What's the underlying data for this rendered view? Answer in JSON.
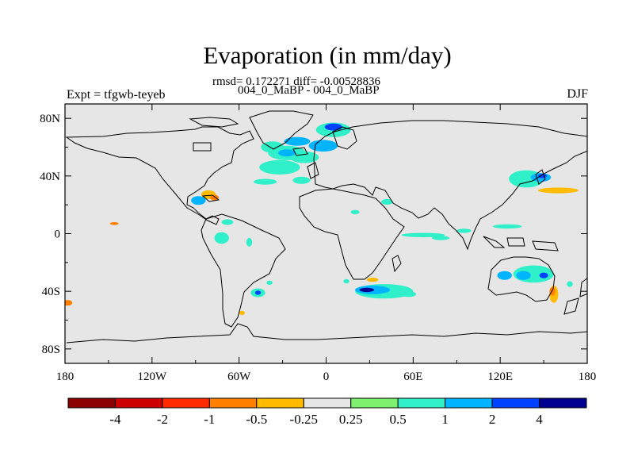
{
  "title": "Evaporation (in mm/day)",
  "stats_line": "rmsd= 0.172271 diff= -0.00528836",
  "experiment_names": "004_0_MaBP - 004_0_MaBP",
  "experiment_label": "Expt = tfgwb-teyeb",
  "season": "DJF",
  "chart_data": {
    "type": "heatmap",
    "title": "Evaporation (in mm/day)",
    "subtitle": "rmsd= 0.172271 diff= -0.00528836",
    "projection": "cylindrical equidistant",
    "xlim": [
      -180,
      180
    ],
    "ylim": [
      -90,
      90
    ],
    "x_ticks": [
      {
        "value": -180,
        "label": "180"
      },
      {
        "value": -120,
        "label": "120W"
      },
      {
        "value": -60,
        "label": "60W"
      },
      {
        "value": 0,
        "label": "0"
      },
      {
        "value": 60,
        "label": "60E"
      },
      {
        "value": 120,
        "label": "120E"
      },
      {
        "value": 180,
        "label": "180"
      }
    ],
    "y_ticks": [
      {
        "value": 80,
        "label": "80N"
      },
      {
        "value": 40,
        "label": "40N"
      },
      {
        "value": 0,
        "label": "0"
      },
      {
        "value": -40,
        "label": "40S"
      },
      {
        "value": -80,
        "label": "80S"
      }
    ],
    "background_color": "#e6e6e6",
    "colorbar": {
      "labels": [
        "-4",
        "-2",
        "-1",
        "-0.5",
        "-0.25",
        "0.25",
        "0.5",
        "1",
        "2",
        "4"
      ],
      "colors": [
        "#8b0000",
        "#cc0000",
        "#ff2a00",
        "#ff8000",
        "#ffbb00",
        "#e6e6e6",
        "#7df06e",
        "#2ff0c8",
        "#00b4ff",
        "#0040ff",
        "#000090"
      ]
    },
    "anomaly_regions": [
      {
        "lon": -32,
        "lat": 46,
        "rx": 14,
        "ry": 5,
        "level": 0.5
      },
      {
        "lon": -15,
        "lat": 53,
        "rx": 10,
        "ry": 4,
        "level": 0.5
      },
      {
        "lon": -37,
        "lat": 60,
        "rx": 8,
        "ry": 4,
        "level": 0.5
      },
      {
        "lon": -27,
        "lat": 56,
        "rx": 13,
        "ry": 5,
        "level": 0.5
      },
      {
        "lon": -27,
        "lat": 56,
        "rx": 6,
        "ry": 2.5,
        "level": 1
      },
      {
        "lon": -20,
        "lat": 64,
        "rx": 9,
        "ry": 3,
        "level": 1
      },
      {
        "lon": 5,
        "lat": 72,
        "rx": 12,
        "ry": 5,
        "level": 0.5
      },
      {
        "lon": 5,
        "lat": 74,
        "rx": 6,
        "ry": 2.5,
        "level": 2
      },
      {
        "lon": -2,
        "lat": 61,
        "rx": 10,
        "ry": 4,
        "level": 1
      },
      {
        "lon": -17,
        "lat": 37,
        "rx": 6,
        "ry": 2.5,
        "level": 0.5
      },
      {
        "lon": -42,
        "lat": 36,
        "rx": 8,
        "ry": 2,
        "level": 0.5
      },
      {
        "lon": -72,
        "lat": 29,
        "rx": 7,
        "ry": 4,
        "level": -0.25
      },
      {
        "lon": -81,
        "lat": 27,
        "rx": 5,
        "ry": 3,
        "level": -0.5
      },
      {
        "lon": -77,
        "lat": 25,
        "rx": 3,
        "ry": 2,
        "level": -1
      },
      {
        "lon": -88,
        "lat": 23,
        "rx": 5,
        "ry": 3,
        "level": 1
      },
      {
        "lon": -92,
        "lat": 15,
        "rx": 5,
        "ry": 3,
        "level": -0.25
      },
      {
        "lon": -172,
        "lat": 5,
        "rx": 8,
        "ry": 1.5,
        "level": -0.25
      },
      {
        "lon": -147,
        "lat": 7,
        "rx": 10,
        "ry": 1.5,
        "level": -0.25
      },
      {
        "lon": -146,
        "lat": 7,
        "rx": 3,
        "ry": 1,
        "level": -1
      },
      {
        "lon": -68,
        "lat": 8,
        "rx": 4,
        "ry": 2,
        "level": 0.5
      },
      {
        "lon": -72,
        "lat": -3,
        "rx": 5,
        "ry": 4,
        "level": 0.5
      },
      {
        "lon": -53,
        "lat": -6,
        "rx": 2,
        "ry": 3,
        "level": 0.5
      },
      {
        "lon": -166,
        "lat": -29,
        "rx": 16,
        "ry": 4,
        "level": -0.25
      },
      {
        "lon": -176,
        "lat": -50,
        "rx": 6,
        "ry": 5,
        "level": -0.25
      },
      {
        "lon": -178,
        "lat": -48,
        "rx": 3,
        "ry": 2,
        "level": -1
      },
      {
        "lon": -47,
        "lat": -41,
        "rx": 5,
        "ry": 3,
        "level": 0.5
      },
      {
        "lon": -47,
        "lat": -41,
        "rx": 2,
        "ry": 1.5,
        "level": 2
      },
      {
        "lon": -39,
        "lat": -34,
        "rx": 2,
        "ry": 1.5,
        "level": 0.5
      },
      {
        "lon": -58,
        "lat": -55,
        "rx": 2,
        "ry": 1.5,
        "level": -0.5
      },
      {
        "lon": 40,
        "lat": -40,
        "rx": 20,
        "ry": 5,
        "level": 0.5
      },
      {
        "lon": 32,
        "lat": -39,
        "rx": 12,
        "ry": 3,
        "level": 1
      },
      {
        "lon": 28,
        "lat": -39,
        "rx": 5,
        "ry": 1.5,
        "level": 4
      },
      {
        "lon": 57,
        "lat": -42,
        "rx": 5,
        "ry": 2,
        "level": 0.5
      },
      {
        "lon": 14,
        "lat": -33,
        "rx": 2,
        "ry": 1.5,
        "level": 0.5
      },
      {
        "lon": 32,
        "lat": -32,
        "rx": 4,
        "ry": 1.5,
        "level": -0.5
      },
      {
        "lon": 48,
        "lat": -31,
        "rx": 4,
        "ry": 1.5,
        "level": -0.25
      },
      {
        "lon": 42,
        "lat": 22,
        "rx": 4,
        "ry": 2,
        "level": 0.5
      },
      {
        "lon": 20,
        "lat": 15,
        "rx": 3,
        "ry": 1.5,
        "level": 0.5
      },
      {
        "lon": 67,
        "lat": -1,
        "rx": 15,
        "ry": 1.5,
        "level": 0.5
      },
      {
        "lon": 79,
        "lat": -3,
        "rx": 6,
        "ry": 1.5,
        "level": 0.5
      },
      {
        "lon": 95,
        "lat": 2,
        "rx": 5,
        "ry": 1.5,
        "level": 0.5
      },
      {
        "lon": 125,
        "lat": 5,
        "rx": 10,
        "ry": 1.5,
        "level": 0.5
      },
      {
        "lon": 138,
        "lat": 38,
        "rx": 12,
        "ry": 6,
        "level": 0.5
      },
      {
        "lon": 148,
        "lat": 39,
        "rx": 7,
        "ry": 3,
        "level": 1
      },
      {
        "lon": 149,
        "lat": 40,
        "rx": 3,
        "ry": 1.5,
        "level": 2
      },
      {
        "lon": 150,
        "lat": 30,
        "rx": 30,
        "ry": 3,
        "level": -0.25
      },
      {
        "lon": 160,
        "lat": 30,
        "rx": 14,
        "ry": 2,
        "level": -0.5
      },
      {
        "lon": 128,
        "lat": 22,
        "rx": 10,
        "ry": 4,
        "level": -0.25
      },
      {
        "lon": 143,
        "lat": -28,
        "rx": 14,
        "ry": 6,
        "level": 0.5
      },
      {
        "lon": 136,
        "lat": -29,
        "rx": 5,
        "ry": 3,
        "level": 1
      },
      {
        "lon": 123,
        "lat": -29,
        "rx": 5,
        "ry": 3,
        "level": 1
      },
      {
        "lon": 150,
        "lat": -29,
        "rx": 3,
        "ry": 2,
        "level": 2
      },
      {
        "lon": 156,
        "lat": -46,
        "rx": 6,
        "ry": 10,
        "level": -0.25
      },
      {
        "lon": 157,
        "lat": -42,
        "rx": 3,
        "ry": 6,
        "level": -0.5
      },
      {
        "lon": 156,
        "lat": -40,
        "rx": 2,
        "ry": 3,
        "level": -1
      },
      {
        "lon": 168,
        "lat": -35,
        "rx": 2,
        "ry": 2,
        "level": 0.5
      },
      {
        "lon": 177,
        "lat": -48,
        "rx": 3,
        "ry": 4,
        "level": -0.25
      }
    ]
  }
}
